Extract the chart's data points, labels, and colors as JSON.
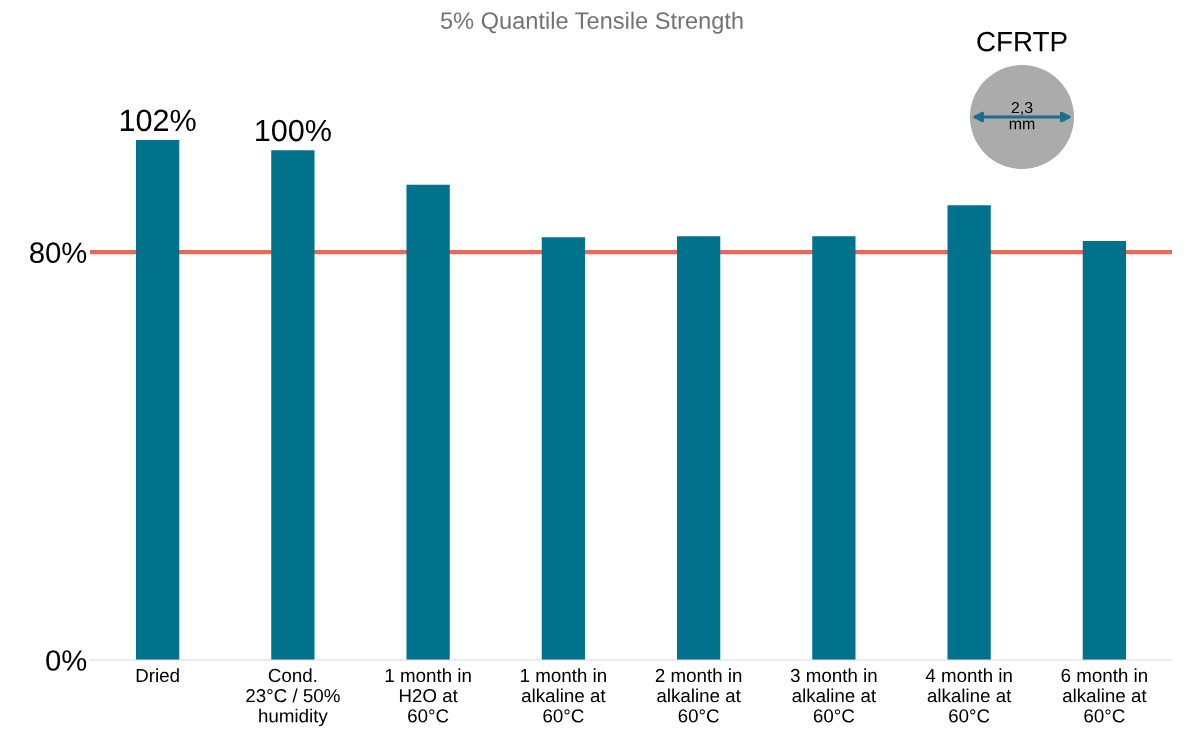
{
  "chart_data": {
    "type": "bar",
    "title": "5% Quantile Tensile Strength",
    "categories": [
      "Dried",
      "Cond.\n23°C / 50%\nhumidity",
      "1 month in\nH2O at\n60°C",
      "1 month in\nalkaline at\n60°C",
      "2 month in\nalkaline at\n60°C",
      "3 month in\nalkaline at\n60°C",
      "4 month in\nalkaline at\n60°C",
      "6 month in\nalkaline at\n60°C"
    ],
    "values": [
      102,
      100,
      93.2,
      82.9,
      83.1,
      83.1,
      89.2,
      82.2
    ],
    "value_labels": [
      "102%",
      "100%",
      null,
      null,
      null,
      null,
      null,
      null
    ],
    "color": "#00728c",
    "ylim": [
      0,
      102
    ],
    "yticks": [
      {
        "value": 0,
        "label": "0%"
      },
      {
        "value": 80,
        "label": "80%"
      }
    ],
    "ref_lines": [
      {
        "axis": "y",
        "value": 80,
        "color": "#e8685a"
      }
    ],
    "annotations": [
      "CFRTP",
      "2,3\nmm"
    ],
    "grid": false
  }
}
